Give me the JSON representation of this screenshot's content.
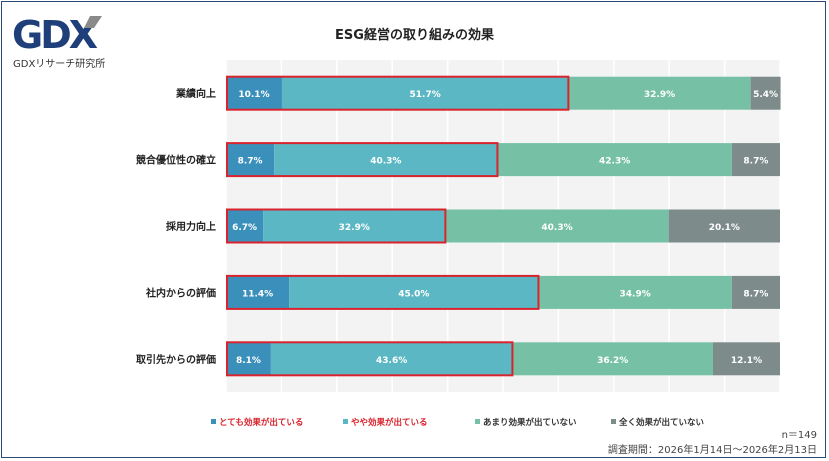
{
  "logo": {
    "text": "GDX",
    "subtitle": "GDXリサーチ研究所"
  },
  "chart_data": {
    "type": "bar",
    "orientation": "horizontal",
    "stacked": "percent",
    "title": "ESG経営の取り組みの効果",
    "categories": [
      "業績向上",
      "競合優位性の確立",
      "採用力向上",
      "社内からの評価",
      "取引先からの評価"
    ],
    "series": [
      {
        "name": "とても効果が出ている",
        "color": "#3a8fbb",
        "values": [
          10.1,
          8.7,
          6.7,
          11.4,
          8.1
        ]
      },
      {
        "name": "やや効果が出ている",
        "color": "#5bb7c4",
        "values": [
          51.7,
          40.3,
          32.9,
          45.0,
          43.6
        ]
      },
      {
        "name": "あまり効果が出ていない",
        "color": "#76c1a6",
        "values": [
          32.9,
          42.3,
          40.3,
          34.9,
          36.2
        ]
      },
      {
        "name": "全く効果が出ていない",
        "color": "#7d8b8b",
        "values": [
          5.4,
          8.7,
          20.1,
          8.7,
          12.1
        ]
      }
    ],
    "highlight": {
      "series": [
        "とても効果が出ている",
        "やや効果が出ている"
      ],
      "color": "#d9232d"
    },
    "legend_highlight_color": "#d9232d",
    "xlim": [
      0,
      100
    ],
    "grid": true,
    "legend": "bottom"
  },
  "notes": {
    "n": "n＝149",
    "period": "調査期間：2026年1月14日～2026年2月13日"
  }
}
